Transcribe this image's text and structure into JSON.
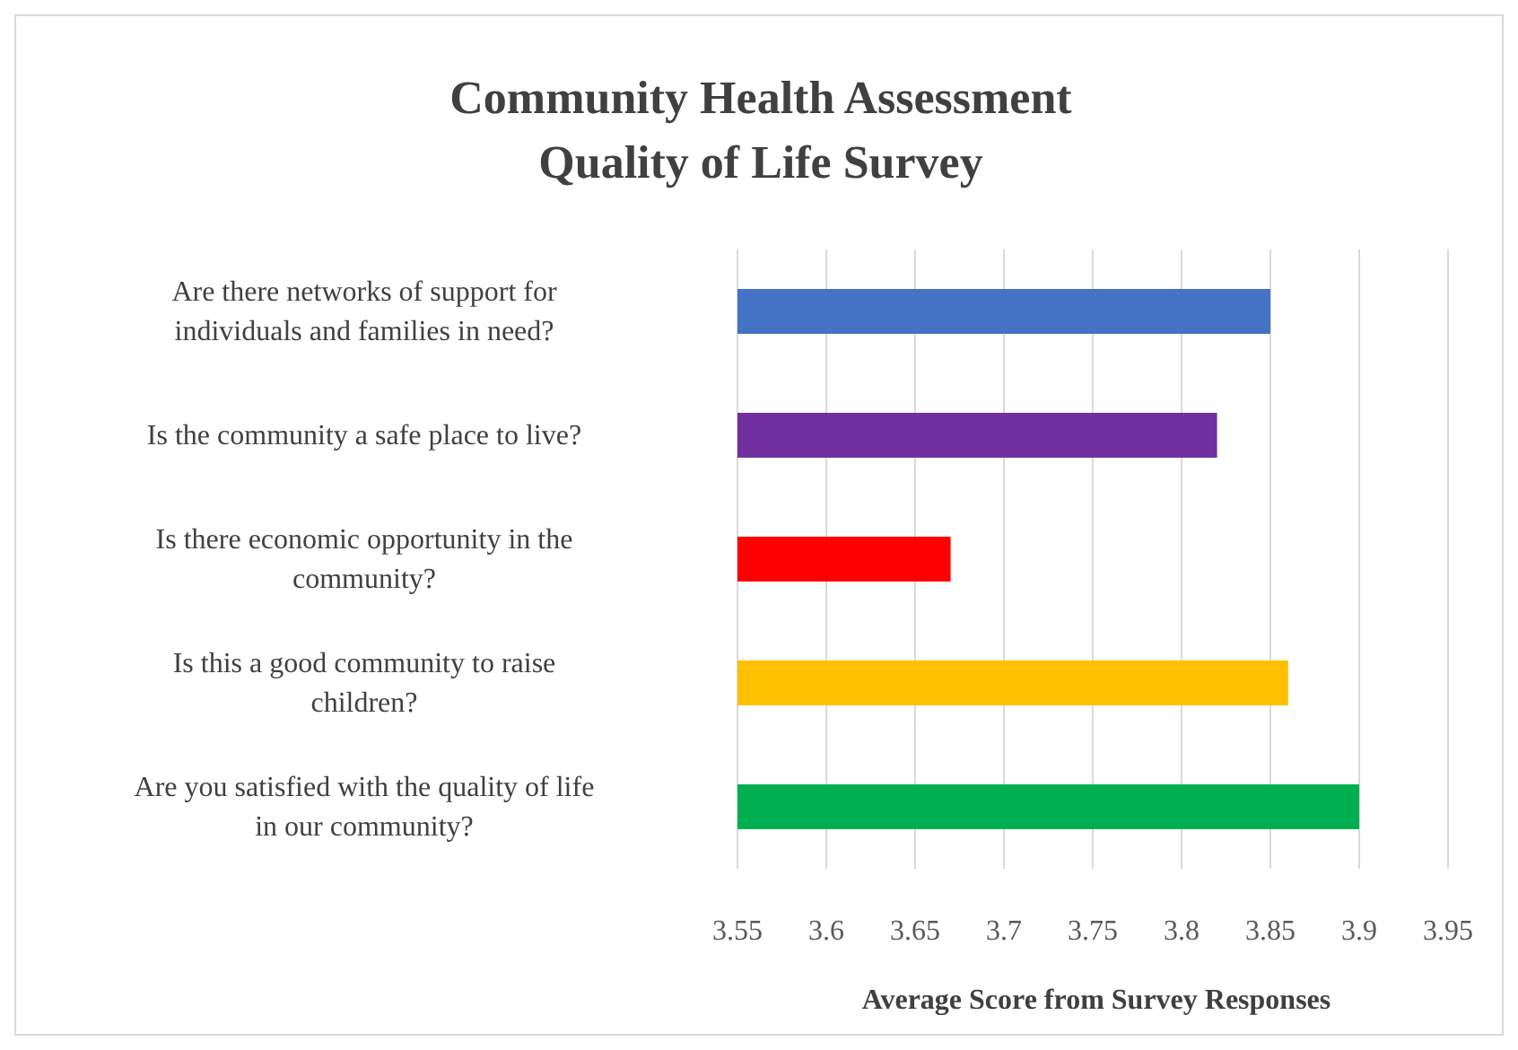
{
  "chart_data": {
    "type": "bar",
    "orientation": "horizontal",
    "title": "Community Health Assessment\nQuality of Life Survey",
    "xlabel": "Average Score from Survey Responses",
    "categories": [
      "Are there networks of support for individuals and families in need?",
      "Is the community a safe place to live?",
      "Is there economic opportunity in the community?",
      "Is this a good community to raise children?",
      "Are you satisfied with the quality of life in our community?"
    ],
    "values": [
      3.85,
      3.82,
      3.67,
      3.86,
      3.9
    ],
    "colors": [
      "#4472c4",
      "#7030a0",
      "#ff0000",
      "#ffc000",
      "#00b050"
    ],
    "xlim": [
      3.55,
      3.95
    ],
    "xticks": [
      3.55,
      3.6,
      3.65,
      3.7,
      3.75,
      3.8,
      3.85,
      3.9,
      3.95
    ],
    "grid": "x",
    "legend": false
  }
}
